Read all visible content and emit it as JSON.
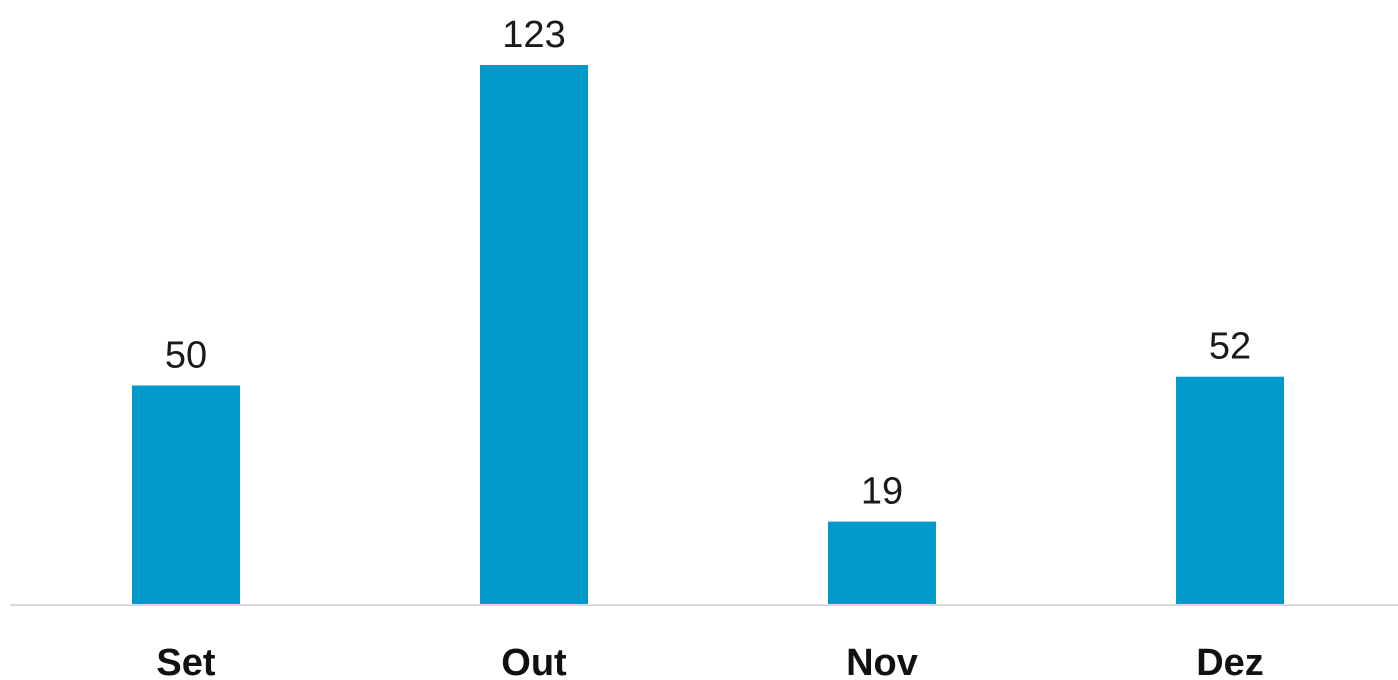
{
  "chart_data": {
    "type": "bar",
    "categories": [
      "Set",
      "Out",
      "Nov",
      "Dez"
    ],
    "values": [
      50,
      123,
      19,
      52
    ],
    "data_labels": [
      "50",
      "123",
      "19",
      "52"
    ],
    "title": "",
    "xlabel": "",
    "ylabel": "",
    "ylim": [
      0,
      123
    ],
    "grid": false,
    "legend": "none",
    "bar_color": "#0099CC",
    "axis_color": "#D9D9D9"
  }
}
